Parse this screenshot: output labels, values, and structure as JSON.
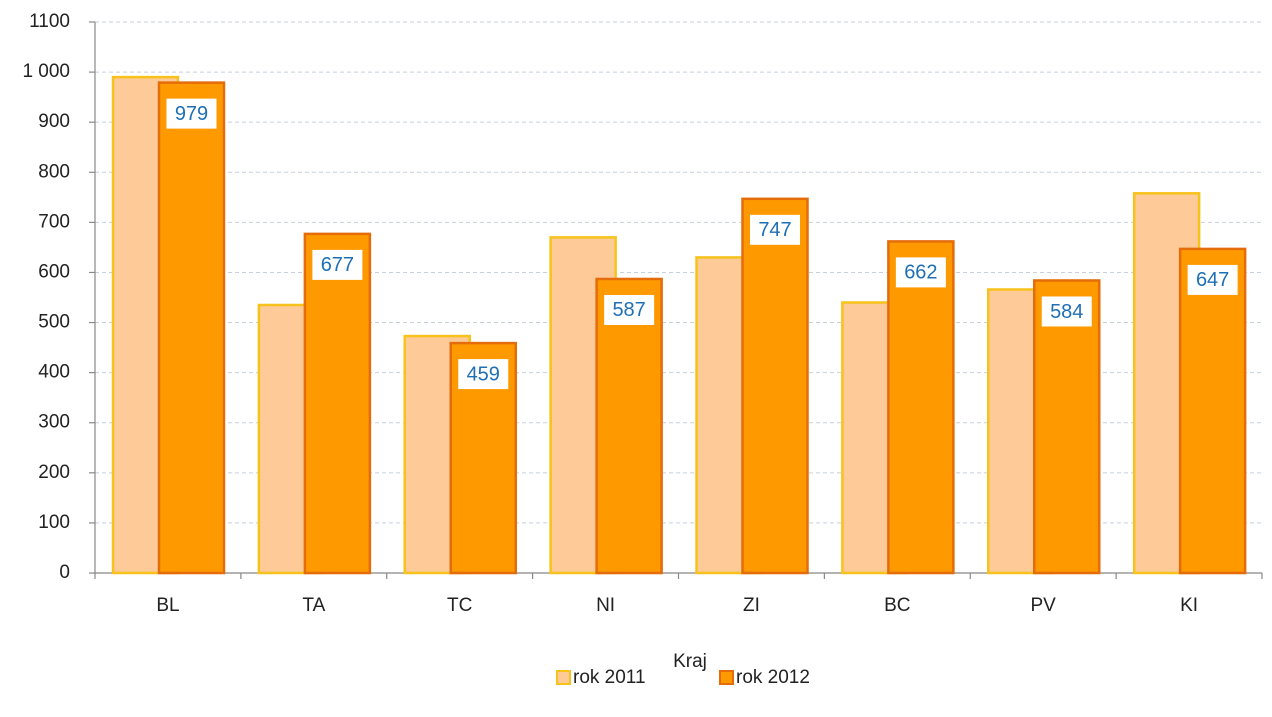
{
  "chart_data": {
    "type": "bar",
    "x_label": "Kraj",
    "categories": [
      "BL",
      "TA",
      "TC",
      "NI",
      "ZI",
      "BC",
      "PV",
      "KI"
    ],
    "series": [
      {
        "name": "rok 2011",
        "color": "#fdca98",
        "edge": "#f7c21b",
        "values": [
          990,
          535,
          473,
          670,
          630,
          540,
          566,
          758
        ]
      },
      {
        "name": "rok 2012",
        "color": "#ff9900",
        "edge": "#e46c0a",
        "values": [
          979,
          677,
          459,
          587,
          747,
          662,
          584,
          647
        ],
        "data_labels": true
      }
    ],
    "ylim": [
      0,
      1100
    ],
    "yticks": [
      0,
      100,
      200,
      300,
      400,
      500,
      600,
      700,
      800,
      900,
      {
        "value": 1000,
        "label": "1 000"
      },
      {
        "value": 1100,
        "label": "1100"
      }
    ],
    "grid": true,
    "legend": "bottom"
  }
}
